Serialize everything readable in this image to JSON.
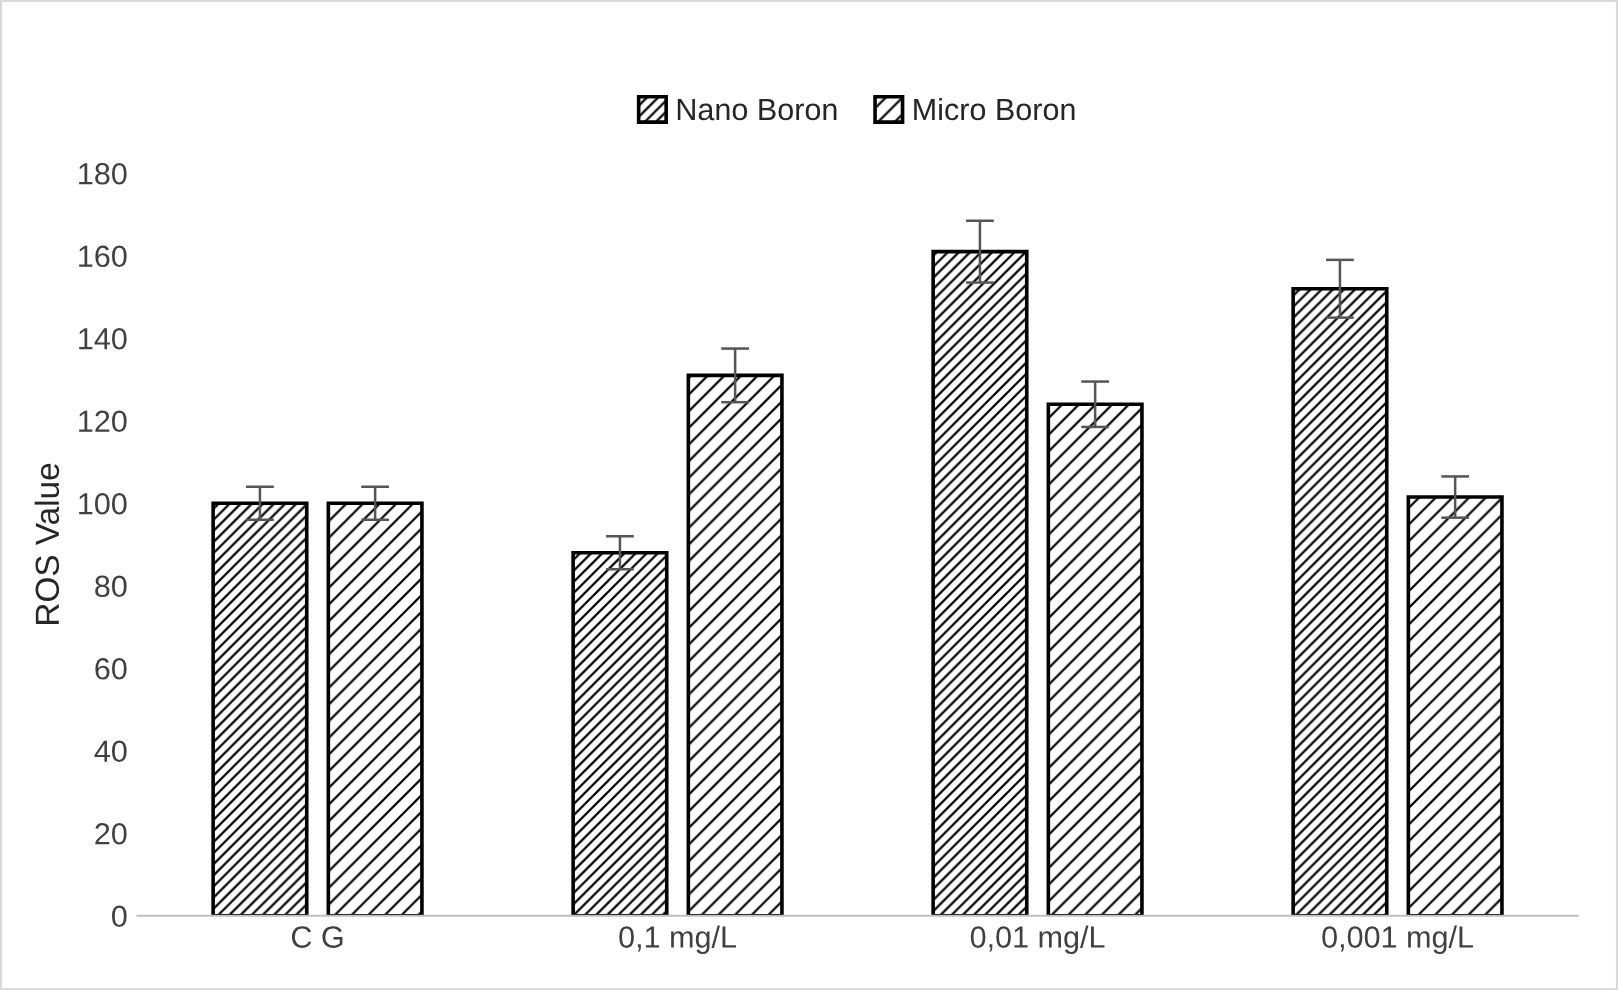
{
  "chart_data": {
    "type": "bar",
    "ylabel": "ROS Value",
    "categories": [
      "C G",
      "0,1 mg/L",
      "0,01 mg/L",
      "0,001 mg/L"
    ],
    "series": [
      {
        "name": "Nano Boron",
        "color": "#000000",
        "values": [
          100,
          88,
          161,
          152
        ],
        "errors": [
          4,
          4,
          7.5,
          7
        ]
      },
      {
        "name": "Micro Boron",
        "color": "#000000",
        "values": [
          100,
          131,
          124,
          101.5
        ],
        "errors": [
          4,
          6.5,
          5.5,
          5
        ]
      }
    ],
    "ylim": [
      0,
      180
    ],
    "yticks": [
      0,
      20,
      40,
      60,
      80,
      100,
      120,
      140,
      160,
      180
    ],
    "grid": false,
    "legend": "top"
  }
}
